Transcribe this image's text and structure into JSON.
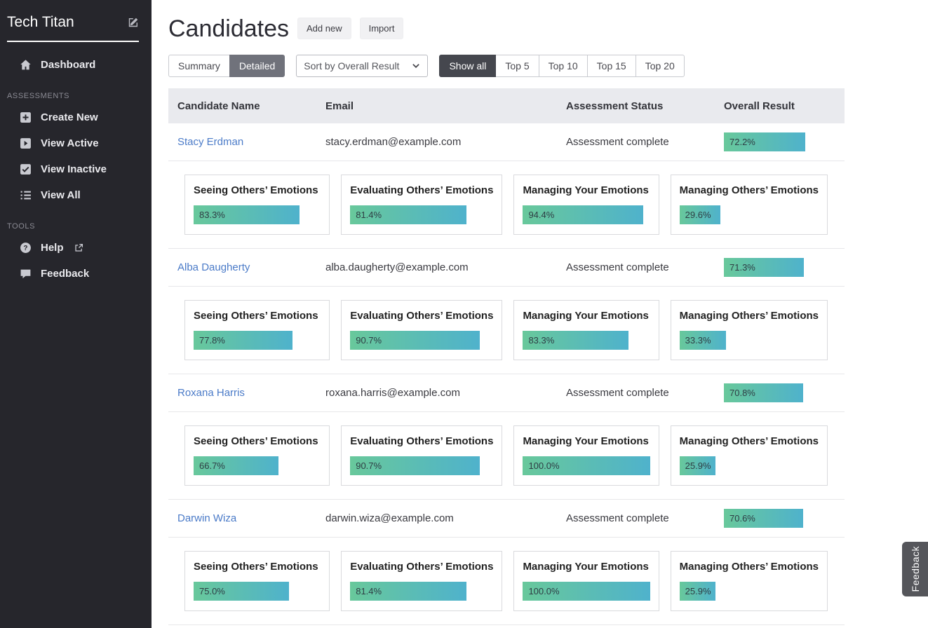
{
  "sidebar": {
    "brand": "Tech Titan",
    "dashboard": "Dashboard",
    "assessments_header": "ASSESSMENTS",
    "assessments_items": [
      "Create New",
      "View Active",
      "View Inactive",
      "View All"
    ],
    "tools_header": "TOOLS",
    "tools_items": [
      "Help",
      "Feedback"
    ]
  },
  "header": {
    "title": "Candidates",
    "add_new_label": "Add new",
    "import_label": "Import"
  },
  "toolbar": {
    "tabs": [
      "Summary",
      "Detailed"
    ],
    "active_tab": "Detailed",
    "sort_label": "Sort by Overall Result",
    "filters": [
      "Show all",
      "Top 5",
      "Top 10",
      "Top 15",
      "Top 20"
    ],
    "active_filter": "Show all"
  },
  "table": {
    "columns": [
      "Candidate Name",
      "Email",
      "Assessment Status",
      "Overall Result"
    ],
    "rows": [
      {
        "name": "Stacy Erdman",
        "email": "stacy.erdman@example.com",
        "status": "Assessment complete",
        "overall": {
          "label": "72.2%",
          "value": 72.2
        },
        "skills": [
          {
            "title": "Seeing Others’ Emotions",
            "label": "83.3%",
            "value": 83.3
          },
          {
            "title": "Evaluating Others’ Emotions",
            "label": "81.4%",
            "value": 81.4
          },
          {
            "title": "Managing Your Emotions",
            "label": "94.4%",
            "value": 94.4
          },
          {
            "title": "Managing Others’ Emotions",
            "label": "29.6%",
            "value": 29.6
          }
        ]
      },
      {
        "name": "Alba Daugherty",
        "email": "alba.daugherty@example.com",
        "status": "Assessment complete",
        "overall": {
          "label": "71.3%",
          "value": 71.3
        },
        "skills": [
          {
            "title": "Seeing Others’ Emotions",
            "label": "77.8%",
            "value": 77.8
          },
          {
            "title": "Evaluating Others’ Emotions",
            "label": "90.7%",
            "value": 90.7
          },
          {
            "title": "Managing Your Emotions",
            "label": "83.3%",
            "value": 83.3
          },
          {
            "title": "Managing Others’ Emotions",
            "label": "33.3%",
            "value": 33.3
          }
        ]
      },
      {
        "name": "Roxana Harris",
        "email": "roxana.harris@example.com",
        "status": "Assessment complete",
        "overall": {
          "label": "70.8%",
          "value": 70.8
        },
        "skills": [
          {
            "title": "Seeing Others’ Emotions",
            "label": "66.7%",
            "value": 66.7
          },
          {
            "title": "Evaluating Others’ Emotions",
            "label": "90.7%",
            "value": 90.7
          },
          {
            "title": "Managing Your Emotions",
            "label": "100.0%",
            "value": 100
          },
          {
            "title": "Managing Others’ Emotions",
            "label": "25.9%",
            "value": 25.9
          }
        ]
      },
      {
        "name": "Darwin Wiza",
        "email": "darwin.wiza@example.com",
        "status": "Assessment complete",
        "overall": {
          "label": "70.6%",
          "value": 70.6
        },
        "skills": [
          {
            "title": "Seeing Others’ Emotions",
            "label": "75.0%",
            "value": 75
          },
          {
            "title": "Evaluating Others’ Emotions",
            "label": "81.4%",
            "value": 81.4
          },
          {
            "title": "Managing Your Emotions",
            "label": "100.0%",
            "value": 100
          },
          {
            "title": "Managing Others’ Emotions",
            "label": "25.9%",
            "value": 25.9
          }
        ]
      }
    ]
  },
  "feedback_tab_label": "Feedback",
  "colors": {
    "sidebar_bg": "#26262c",
    "link": "#4b7bc8",
    "bar_gradient_start": "#68c89b",
    "bar_gradient_end": "#4fb2cc",
    "tab_active_bg": "#70727b",
    "filter_active_bg": "#45474e",
    "table_header_bg": "#e9eaee"
  }
}
